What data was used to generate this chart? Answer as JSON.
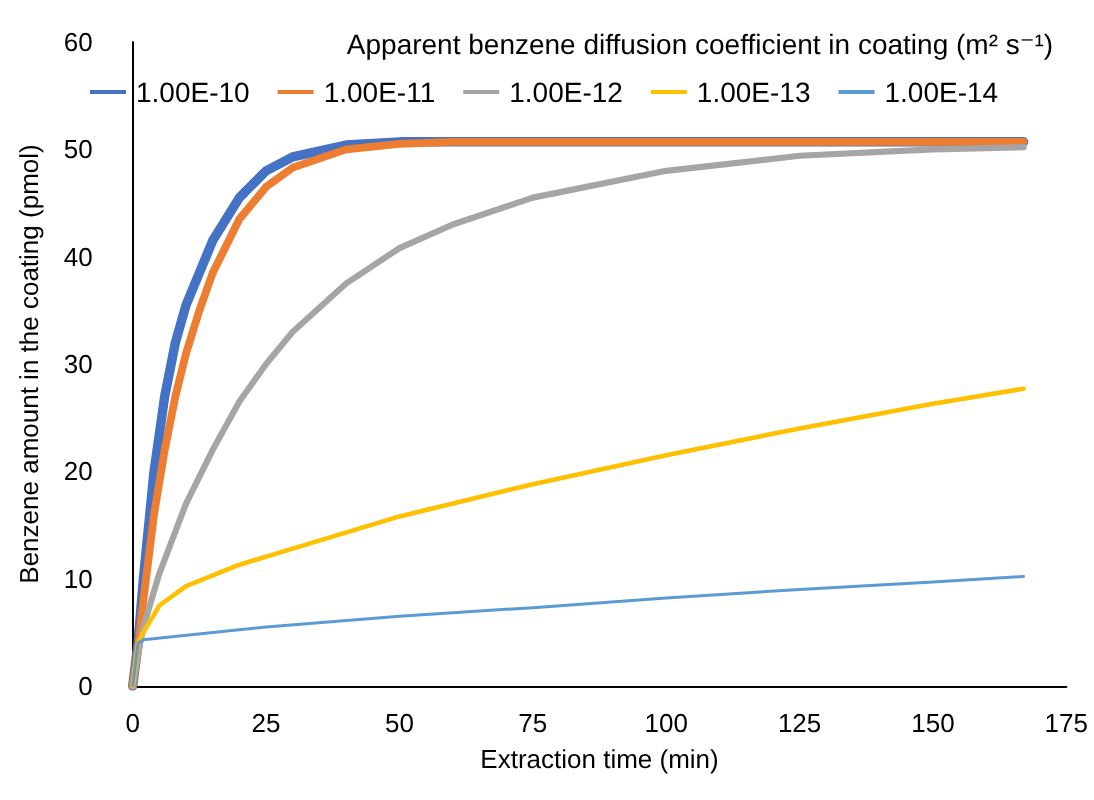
{
  "chart_data": {
    "type": "line",
    "xlabel": "Extraction time (min)",
    "ylabel": "Benzene amount in the coating (pmol)",
    "legend_title": "Apparent benzene diffusion coefficient in coating (m² s⁻¹)",
    "legend": "top",
    "grid": false,
    "marker": "none",
    "line_style": "solid",
    "xlim": [
      0,
      175
    ],
    "xticks": [
      0,
      25,
      50,
      75,
      100,
      125,
      150,
      175
    ],
    "ylim": [
      0,
      60
    ],
    "yticks": [
      0,
      10,
      20,
      30,
      40,
      50,
      60
    ],
    "series": [
      {
        "name": "1.00E-10",
        "color": "#4472c4",
        "x": [
          0,
          1,
          2,
          4,
          6,
          8,
          10,
          12.5,
          15,
          20,
          25,
          30,
          40,
          50,
          167
        ],
        "values": [
          0,
          4,
          10,
          20,
          27,
          32,
          35.5,
          38.5,
          41.5,
          45.5,
          48,
          49.3,
          50.4,
          50.7,
          50.7
        ]
      },
      {
        "name": "1.00E-11",
        "color": "#ed7d31",
        "x": [
          0,
          1,
          2,
          4,
          6,
          8,
          10,
          12.5,
          15,
          20,
          25,
          30,
          40,
          50,
          60,
          167
        ],
        "values": [
          0,
          3.5,
          8,
          16,
          22,
          27,
          31,
          35,
          38.5,
          43.5,
          46.5,
          48.3,
          50,
          50.5,
          50.7,
          50.7
        ]
      },
      {
        "name": "1.00E-12",
        "color": "#a5a5a5",
        "x": [
          0,
          1,
          2,
          5,
          10,
          15,
          20,
          25,
          30,
          40,
          50,
          60,
          75,
          100,
          125,
          150,
          167
        ],
        "values": [
          0,
          3,
          5.5,
          10.5,
          17,
          22,
          26.5,
          30,
          33,
          37.5,
          40.8,
          43,
          45.5,
          48,
          49.4,
          50,
          50.2
        ]
      },
      {
        "name": "1.00E-13",
        "color": "#ffc000",
        "x": [
          0,
          1,
          2,
          5,
          10,
          20,
          30,
          50,
          75,
          100,
          125,
          150,
          167
        ],
        "values": [
          0,
          4,
          5,
          7.5,
          9.3,
          11.3,
          12.8,
          15.8,
          18.8,
          21.5,
          24,
          26.3,
          27.7
        ]
      },
      {
        "name": "1.00E-14",
        "color": "#5b9bd5",
        "x": [
          0,
          1,
          2,
          25,
          50,
          75,
          100,
          125,
          150,
          167
        ],
        "values": [
          0,
          4,
          4.3,
          5.5,
          6.5,
          7.3,
          8.2,
          9,
          9.7,
          10.2
        ]
      }
    ]
  }
}
